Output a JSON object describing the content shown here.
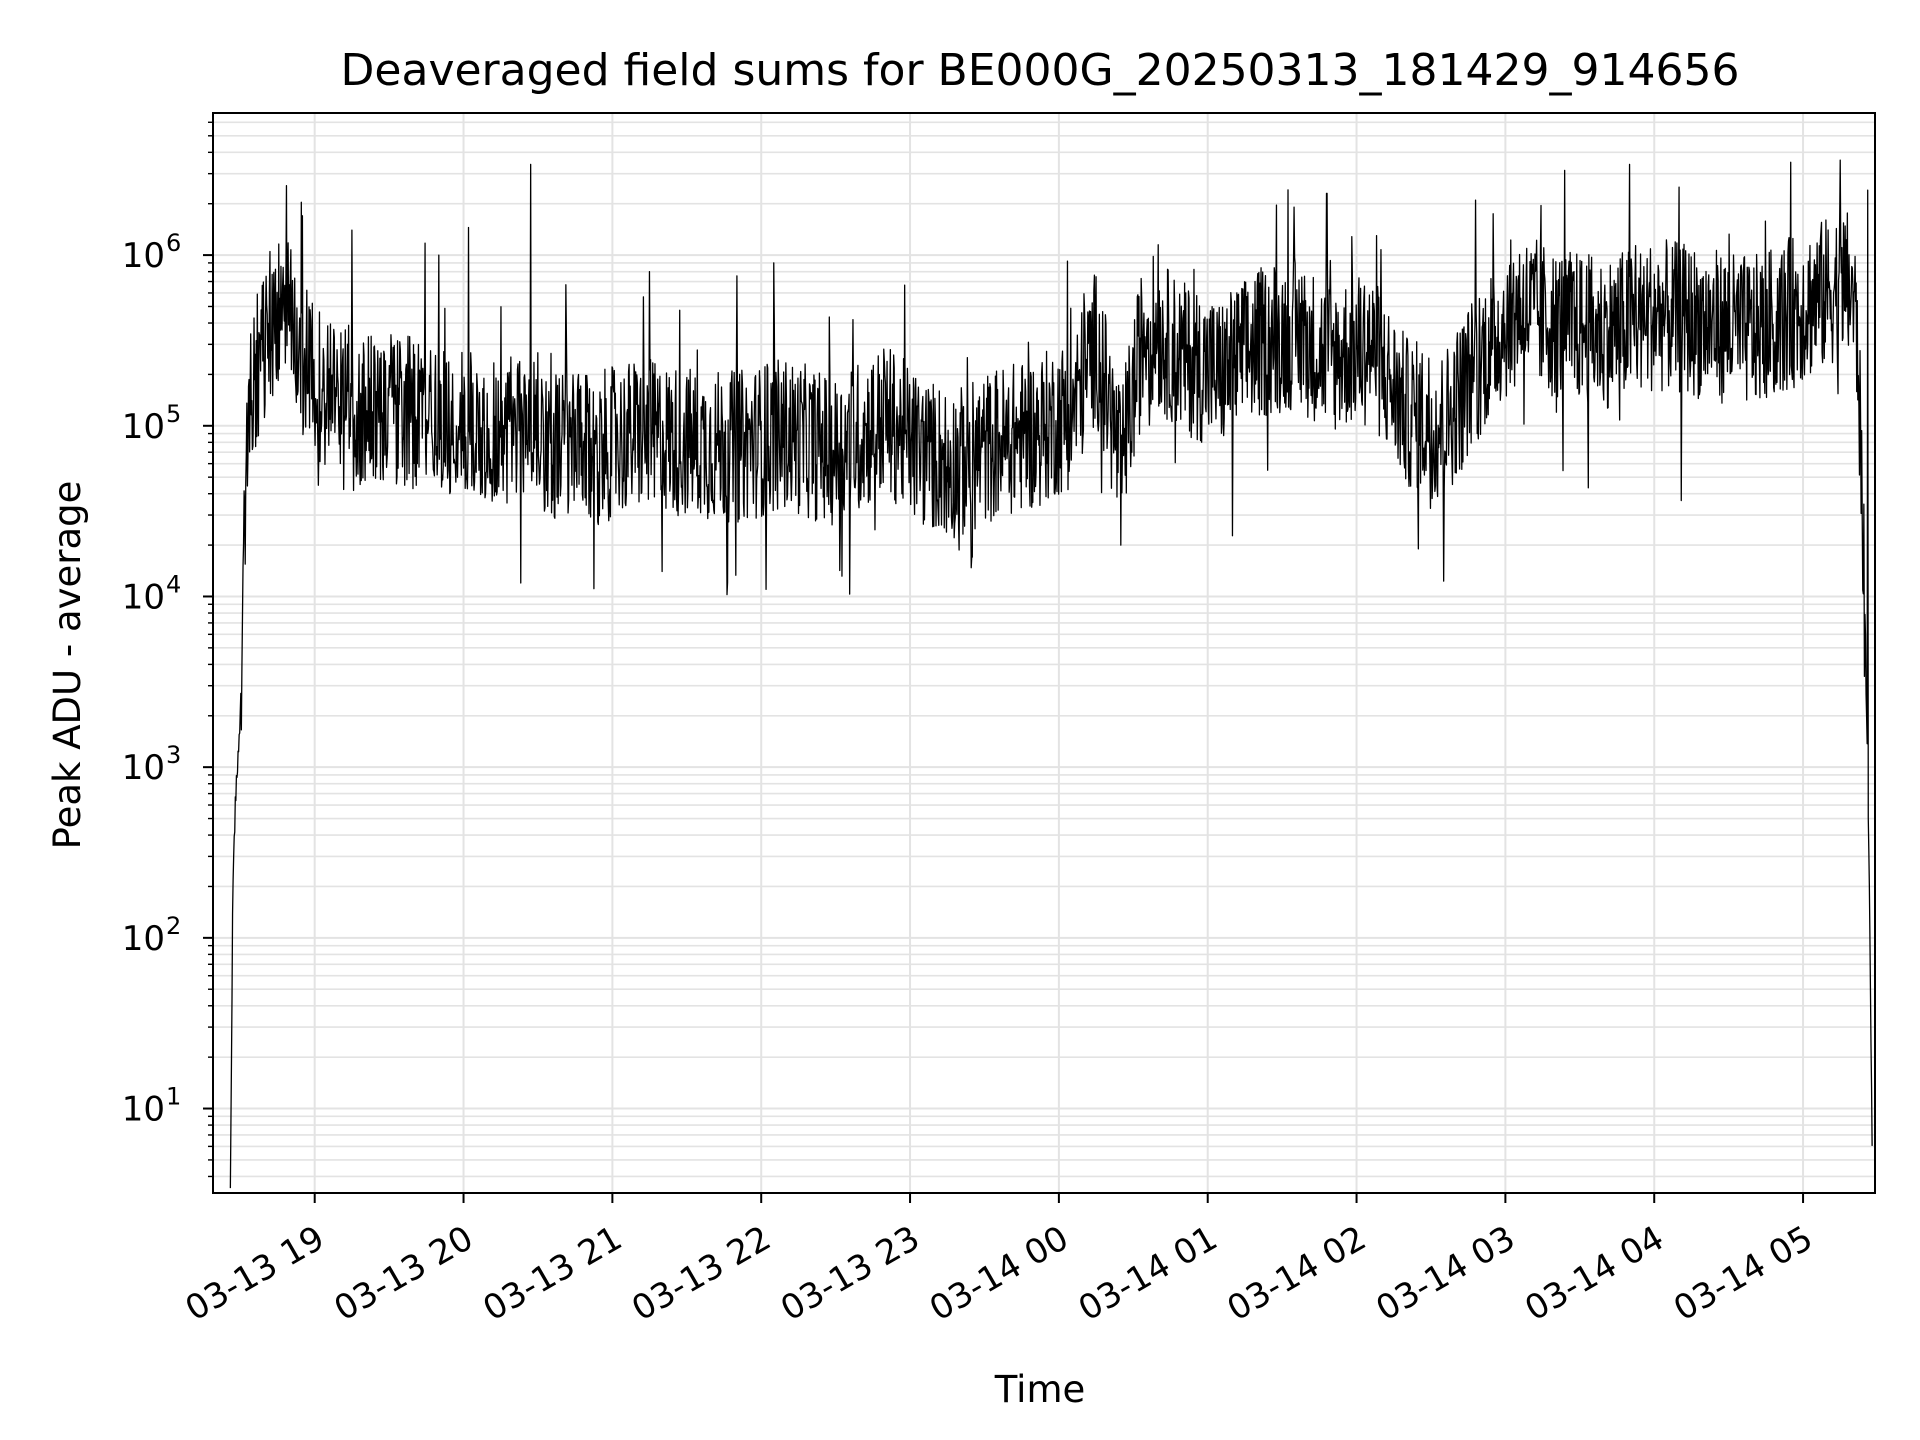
{
  "chart_data": {
    "type": "line",
    "title": "Deaveraged field sums for BE000G_20250313_181429_914656",
    "xlabel": "Time",
    "ylabel": "Peak ADU - average",
    "x_ticks": [
      "03-13 19",
      "03-13 20",
      "03-13 21",
      "03-13 22",
      "03-13 23",
      "03-14 00",
      "03-14 01",
      "03-14 02",
      "03-14 03",
      "03-14 04",
      "03-14 05"
    ],
    "y_ticks": [
      {
        "base": "10",
        "exp": "1"
      },
      {
        "base": "10",
        "exp": "2"
      },
      {
        "base": "10",
        "exp": "3"
      },
      {
        "base": "10",
        "exp": "4"
      },
      {
        "base": "10",
        "exp": "5"
      },
      {
        "base": "10",
        "exp": "6"
      }
    ],
    "y_scale": "log",
    "xlim": [
      "2025-03-13 18:19",
      "2025-03-14 05:29"
    ],
    "ylim": [
      3.2,
      6800000
    ],
    "grid": true,
    "line_color": "#000000",
    "grid_color": "#e3e3e3",
    "x": [
      "2025-03-13 18:26",
      "2025-03-13 18:27",
      "2025-03-13 18:28",
      "2025-03-13 18:30",
      "2025-03-13 18:32",
      "2025-03-13 18:34",
      "2025-03-13 18:38",
      "2025-03-13 18:42",
      "2025-03-13 18:48",
      "2025-03-13 18:55",
      "2025-03-13 19:00",
      "2025-03-13 19:10",
      "2025-03-13 19:20",
      "2025-03-13 19:30",
      "2025-03-13 19:45",
      "2025-03-13 20:00",
      "2025-03-13 20:15",
      "2025-03-13 20:27",
      "2025-03-13 20:35",
      "2025-03-13 20:50",
      "2025-03-13 21:10",
      "2025-03-13 21:30",
      "2025-03-13 21:50",
      "2025-03-13 22:10",
      "2025-03-13 22:30",
      "2025-03-13 22:50",
      "2025-03-13 23:05",
      "2025-03-13 23:20",
      "2025-03-13 23:35",
      "2025-03-13 23:50",
      "2025-03-14 00:05",
      "2025-03-14 00:15",
      "2025-03-14 00:25",
      "2025-03-14 00:35",
      "2025-03-14 00:50",
      "2025-03-14 01:05",
      "2025-03-14 01:20",
      "2025-03-14 01:35",
      "2025-03-14 01:50",
      "2025-03-14 02:05",
      "2025-03-14 02:20",
      "2025-03-14 02:35",
      "2025-03-14 02:50",
      "2025-03-14 03:05",
      "2025-03-14 03:20",
      "2025-03-14 03:40",
      "2025-03-14 04:00",
      "2025-03-14 04:20",
      "2025-03-14 04:40",
      "2025-03-14 05:00",
      "2025-03-14 05:10",
      "2025-03-14 05:16",
      "2025-03-14 05:20",
      "2025-03-14 05:22",
      "2025-03-14 05:24",
      "2025-03-14 05:26",
      "2025-03-14 05:27",
      "2025-03-14 05:28"
    ],
    "y": [
      3.2,
      200,
      600,
      2000,
      30000,
      150000,
      250000,
      400000,
      500000,
      250000,
      180000,
      150000,
      120000,
      130000,
      110000,
      100000,
      90000,
      110000,
      80000,
      70000,
      90000,
      80000,
      75000,
      90000,
      70000,
      110000,
      70000,
      60000,
      80000,
      90000,
      120000,
      300000,
      60000,
      400000,
      250000,
      200000,
      300000,
      350000,
      250000,
      300000,
      120000,
      100000,
      250000,
      500000,
      400000,
      350000,
      450000,
      400000,
      350000,
      500000,
      600000,
      700000,
      600000,
      300000,
      30000,
      1000,
      100,
      3.2
    ],
    "spikes": [
      {
        "x": "2025-03-13 18:55",
        "y": 1700000
      },
      {
        "x": "2025-03-13 19:15",
        "y": 1400000
      },
      {
        "x": "2025-03-13 19:50",
        "y": 1000000
      },
      {
        "x": "2025-03-13 20:02",
        "y": 1450000
      },
      {
        "x": "2025-03-13 20:27",
        "y": 3400000
      },
      {
        "x": "2025-03-13 20:23",
        "y": 12000
      },
      {
        "x": "2025-03-13 21:15",
        "y": 800000
      },
      {
        "x": "2025-03-13 21:20",
        "y": 14000
      },
      {
        "x": "2025-03-13 22:02",
        "y": 11000
      },
      {
        "x": "2025-03-13 22:05",
        "y": 900000
      },
      {
        "x": "2025-03-13 23:25",
        "y": 17000
      },
      {
        "x": "2025-03-14 00:25",
        "y": 20000
      },
      {
        "x": "2025-03-14 00:40",
        "y": 1150000
      },
      {
        "x": "2025-03-14 01:48",
        "y": 2300000
      },
      {
        "x": "2025-03-14 02:08",
        "y": 1300000
      },
      {
        "x": "2025-03-14 02:25",
        "y": 19000
      },
      {
        "x": "2025-03-14 02:48",
        "y": 2100000
      },
      {
        "x": "2025-03-14 03:50",
        "y": 3400000
      },
      {
        "x": "2025-03-14 04:10",
        "y": 2500000
      },
      {
        "x": "2025-03-14 04:55",
        "y": 3500000
      },
      {
        "x": "2025-03-14 05:15",
        "y": 3600000
      },
      {
        "x": "2025-03-14 05:26",
        "y": 2400000
      }
    ]
  }
}
